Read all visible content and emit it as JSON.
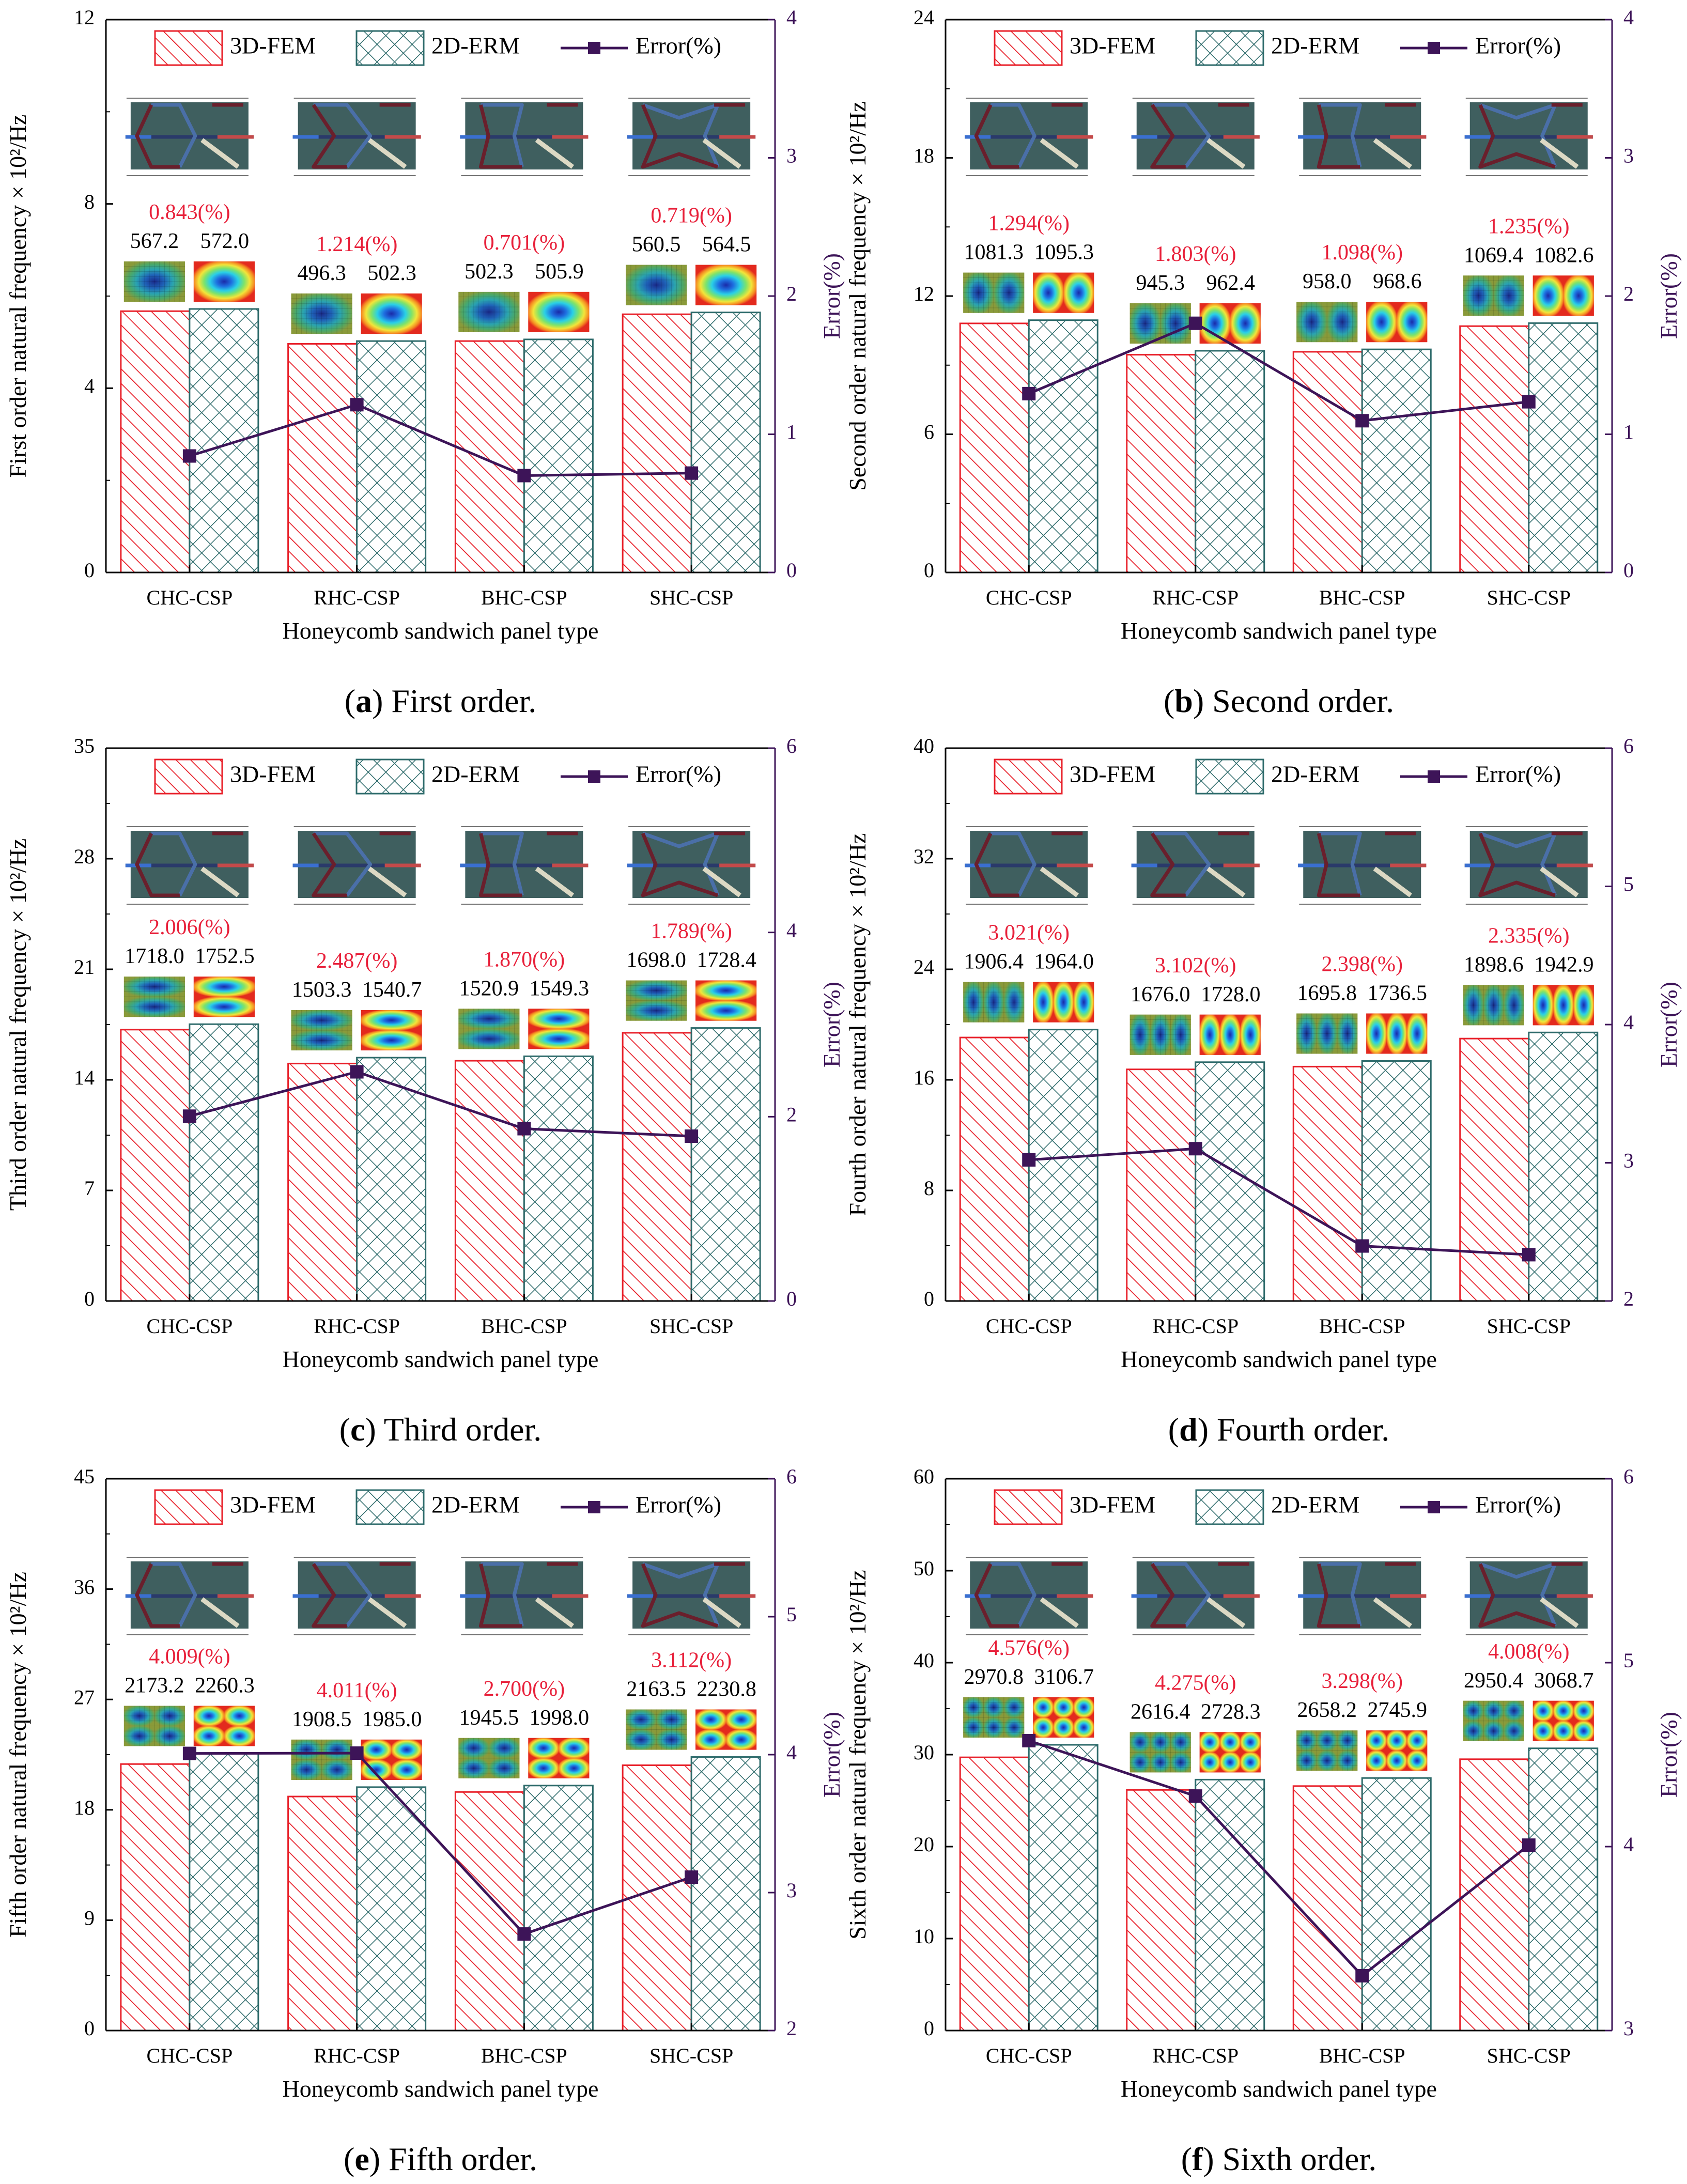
{
  "colors": {
    "fem": "#e8202a",
    "erm": "#2e6b6b",
    "error": "#3d1458",
    "errorLabel": "#e8203a",
    "panel": "#3f5f5f",
    "ring": "#4a6fa8",
    "maroon": "#6a1f2c",
    "beige": "#dcd9c4"
  },
  "legend": {
    "fem": "3D-FEM",
    "erm": "2D-ERM",
    "error": "Error(%)"
  },
  "icons": {
    "panel": "honeycomb-cell-diagram-icon",
    "mode": "mode-shape-contour-icon"
  },
  "chart_data": [
    {
      "type": "bar",
      "caption_letter": "a",
      "caption_text": " First order.",
      "categories": [
        "CHC-CSP",
        "RHC-CSP",
        "BHC-CSP",
        "SHC-CSP"
      ],
      "xlabel": "Honeycomb sandwich panel type",
      "ylabel": "First order natural frequency × 10²/Hz",
      "y2label": "Error(%)",
      "ylim": [
        0,
        12
      ],
      "yticks": [
        "0",
        "4",
        "8",
        "12"
      ],
      "y2lim": [
        0,
        4
      ],
      "y2ticks": [
        "0",
        "1",
        "2",
        "3",
        "4"
      ],
      "series": [
        {
          "name": "3D-FEM",
          "values": [
            5.672,
            4.963,
            5.023,
            5.605
          ]
        },
        {
          "name": "2D-ERM",
          "values": [
            5.72,
            5.023,
            5.059,
            5.645
          ]
        },
        {
          "name": "Error(%)",
          "values": [
            0.843,
            1.214,
            0.701,
            0.719
          ]
        }
      ],
      "fem_labels": [
        "567.2",
        "496.3",
        "502.3",
        "560.5"
      ],
      "erm_labels": [
        "572.0",
        "502.3",
        "505.9",
        "564.5"
      ],
      "error_labels": [
        "0.843(%)",
        "1.214(%)",
        "0.701(%)",
        "0.719(%)"
      ],
      "mode": {
        "rows": 1,
        "cols": 1
      }
    },
    {
      "type": "bar",
      "caption_letter": "b",
      "caption_text": " Second order.",
      "categories": [
        "CHC-CSP",
        "RHC-CSP",
        "BHC-CSP",
        "SHC-CSP"
      ],
      "xlabel": "Honeycomb sandwich panel type",
      "ylabel": "Second order natural frequency × 10²/Hz",
      "y2label": "Error(%)",
      "ylim": [
        0,
        24
      ],
      "yticks": [
        "0",
        "6",
        "12",
        "18",
        "24"
      ],
      "y2lim": [
        0,
        4
      ],
      "y2ticks": [
        "0",
        "1",
        "2",
        "3",
        "4"
      ],
      "series": [
        {
          "name": "3D-FEM",
          "values": [
            10.813,
            9.453,
            9.58,
            10.694
          ]
        },
        {
          "name": "2D-ERM",
          "values": [
            10.953,
            9.624,
            9.686,
            10.826
          ]
        },
        {
          "name": "Error(%)",
          "values": [
            1.294,
            1.803,
            1.098,
            1.235
          ]
        }
      ],
      "fem_labels": [
        "1081.3",
        "945.3",
        "958.0",
        "1069.4"
      ],
      "erm_labels": [
        "1095.3",
        "962.4",
        "968.6",
        "1082.6"
      ],
      "error_labels": [
        "1.294(%)",
        "1.803(%)",
        "1.098(%)",
        "1.235(%)"
      ],
      "mode": {
        "rows": 1,
        "cols": 2
      }
    },
    {
      "type": "bar",
      "caption_letter": "c",
      "caption_text": " Third order.",
      "categories": [
        "CHC-CSP",
        "RHC-CSP",
        "BHC-CSP",
        "SHC-CSP"
      ],
      "xlabel": "Honeycomb sandwich panel type",
      "ylabel": "Third order natural frequency × 10²/Hz",
      "y2label": "Error(%)",
      "ylim": [
        0,
        35
      ],
      "yticks": [
        "0",
        "7",
        "14",
        "21",
        "28",
        "35"
      ],
      "y2lim": [
        0,
        6
      ],
      "y2ticks": [
        "0",
        "2",
        "4",
        "6"
      ],
      "series": [
        {
          "name": "3D-FEM",
          "values": [
            17.18,
            15.033,
            15.209,
            16.98
          ]
        },
        {
          "name": "2D-ERM",
          "values": [
            17.525,
            15.407,
            15.493,
            17.284
          ]
        },
        {
          "name": "Error(%)",
          "values": [
            2.006,
            2.487,
            1.87,
            1.789
          ]
        }
      ],
      "fem_labels": [
        "1718.0",
        "1503.3",
        "1520.9",
        "1698.0"
      ],
      "erm_labels": [
        "1752.5",
        "1540.7",
        "1549.3",
        "1728.4"
      ],
      "error_labels": [
        "2.006(%)",
        "2.487(%)",
        "1.870(%)",
        "1.789(%)"
      ],
      "mode": {
        "rows": 2,
        "cols": 1
      }
    },
    {
      "type": "bar",
      "caption_letter": "d",
      "caption_text": " Fourth order.",
      "categories": [
        "CHC-CSP",
        "RHC-CSP",
        "BHC-CSP",
        "SHC-CSP"
      ],
      "xlabel": "Honeycomb sandwich panel type",
      "ylabel": "Fourth order natural frequency × 10²/Hz",
      "y2label": "Error(%)",
      "ylim": [
        0,
        40
      ],
      "yticks": [
        "0",
        "8",
        "16",
        "24",
        "32",
        "40"
      ],
      "y2lim": [
        2,
        6
      ],
      "y2ticks": [
        "2",
        "3",
        "4",
        "5",
        "6"
      ],
      "series": [
        {
          "name": "3D-FEM",
          "values": [
            19.064,
            16.76,
            16.958,
            18.986
          ]
        },
        {
          "name": "2D-ERM",
          "values": [
            19.64,
            17.28,
            17.365,
            19.429
          ]
        },
        {
          "name": "Error(%)",
          "values": [
            3.021,
            3.102,
            2.398,
            2.335
          ]
        }
      ],
      "fem_labels": [
        "1906.4",
        "1676.0",
        "1695.8",
        "1898.6"
      ],
      "erm_labels": [
        "1964.0",
        "1728.0",
        "1736.5",
        "1942.9"
      ],
      "error_labels": [
        "3.021(%)",
        "3.102(%)",
        "2.398(%)",
        "2.335(%)"
      ],
      "mode": {
        "rows": 1,
        "cols": 3
      }
    },
    {
      "type": "bar",
      "caption_letter": "e",
      "caption_text": " Fifth order.",
      "categories": [
        "CHC-CSP",
        "RHC-CSP",
        "BHC-CSP",
        "SHC-CSP"
      ],
      "xlabel": "Honeycomb sandwich panel type",
      "ylabel": "Fifth order natural frequency × 10²/Hz",
      "y2label": "Error(%)",
      "ylim": [
        0,
        45
      ],
      "yticks": [
        "0",
        "9",
        "18",
        "27",
        "36",
        "45"
      ],
      "y2lim": [
        2,
        6
      ],
      "y2ticks": [
        "2",
        "3",
        "4",
        "5",
        "6"
      ],
      "series": [
        {
          "name": "3D-FEM",
          "values": [
            21.732,
            19.085,
            19.455,
            21.635
          ]
        },
        {
          "name": "2D-ERM",
          "values": [
            22.603,
            19.85,
            19.98,
            22.308
          ]
        },
        {
          "name": "Error(%)",
          "values": [
            4.009,
            4.011,
            2.7,
            3.112
          ]
        }
      ],
      "fem_labels": [
        "2173.2",
        "1908.5",
        "1945.5",
        "2163.5"
      ],
      "erm_labels": [
        "2260.3",
        "1985.0",
        "1998.0",
        "2230.8"
      ],
      "error_labels": [
        "4.009(%)",
        "4.011(%)",
        "2.700(%)",
        "3.112(%)"
      ],
      "mode": {
        "rows": 2,
        "cols": 2
      }
    },
    {
      "type": "bar",
      "caption_letter": "f",
      "caption_text": " Sixth order.",
      "categories": [
        "CHC-CSP",
        "RHC-CSP",
        "BHC-CSP",
        "SHC-CSP"
      ],
      "xlabel": "Honeycomb sandwich panel type",
      "ylabel": "Sixth order natural frequency × 10²/Hz",
      "y2label": "Error(%)",
      "ylim": [
        0,
        60
      ],
      "yticks": [
        "0",
        "10",
        "20",
        "30",
        "40",
        "50",
        "60"
      ],
      "y2lim": [
        3,
        6
      ],
      "y2ticks": [
        "3",
        "4",
        "5",
        "6"
      ],
      "series": [
        {
          "name": "3D-FEM",
          "values": [
            29.708,
            26.164,
            26.582,
            29.504
          ]
        },
        {
          "name": "2D-ERM",
          "values": [
            31.067,
            27.283,
            27.459,
            30.687
          ]
        },
        {
          "name": "Error(%)",
          "values": [
            4.576,
            4.275,
            3.298,
            4.008
          ]
        }
      ],
      "fem_labels": [
        "2970.8",
        "2616.4",
        "2658.2",
        "2950.4"
      ],
      "erm_labels": [
        "3106.7",
        "2728.3",
        "2745.9",
        "3068.7"
      ],
      "error_labels": [
        "4.576(%)",
        "4.275(%)",
        "3.298(%)",
        "4.008(%)"
      ],
      "mode": {
        "rows": 2,
        "cols": 3
      }
    }
  ]
}
